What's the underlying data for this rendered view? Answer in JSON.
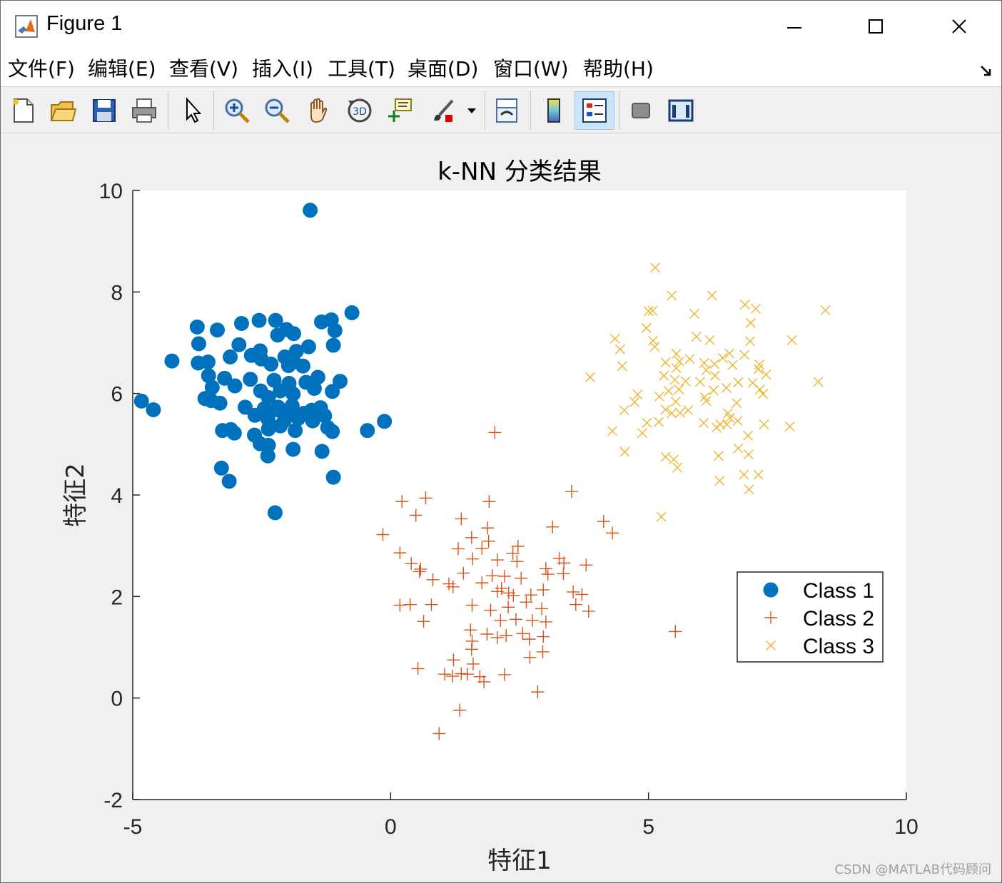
{
  "window": {
    "title": "Figure 1"
  },
  "menu": {
    "items": [
      "文件(F)",
      "编辑(E)",
      "查看(V)",
      "插入(I)",
      "工具(T)",
      "桌面(D)",
      "窗口(W)",
      "帮助(H)"
    ]
  },
  "toolbar": {
    "buttons": [
      {
        "name": "new-figure-icon"
      },
      {
        "name": "open-file-icon"
      },
      {
        "name": "save-icon"
      },
      {
        "name": "print-icon"
      },
      {
        "name": "select-arrow-icon"
      },
      {
        "name": "zoom-in-icon"
      },
      {
        "name": "zoom-out-icon"
      },
      {
        "name": "pan-hand-icon"
      },
      {
        "name": "rotate-3d-icon"
      },
      {
        "name": "data-cursor-icon"
      },
      {
        "name": "brush-icon"
      },
      {
        "name": "link-plot-icon"
      },
      {
        "name": "colorbar-icon"
      },
      {
        "name": "legend-icon"
      },
      {
        "name": "hide-plot-tools-icon"
      },
      {
        "name": "show-plot-tools-icon"
      }
    ]
  },
  "watermark": "CSDN @MATLAB代码顾问",
  "colors": {
    "class1": "#0072bd",
    "class2": "#d95319",
    "class3": "#edb120"
  },
  "chart_data": {
    "type": "scatter",
    "title": "k-NN 分类结果",
    "xlabel": "特征1",
    "ylabel": "特征2",
    "xlim": [
      -5,
      10
    ],
    "ylim": [
      -2,
      10
    ],
    "xticks": [
      "-5",
      "0",
      "5",
      "10"
    ],
    "yticks": [
      "-2",
      "0",
      "2",
      "4",
      "6",
      "8",
      "10"
    ],
    "legend_position": "right",
    "grid": false,
    "series": [
      {
        "name": "Class 1",
        "marker": "o",
        "color": "#0072bd",
        "points": [
          [
            -1.56,
            9.61
          ],
          [
            -0.75,
            7.59
          ],
          [
            -1.34,
            7.41
          ],
          [
            -1.15,
            7.45
          ],
          [
            -1.08,
            7.24
          ],
          [
            -2.55,
            7.44
          ],
          [
            -2.89,
            7.38
          ],
          [
            -2.23,
            7.44
          ],
          [
            -2.02,
            7.26
          ],
          [
            -1.88,
            7.18
          ],
          [
            -2.19,
            7.15
          ],
          [
            -3.75,
            7.31
          ],
          [
            -3.36,
            7.25
          ],
          [
            -3.72,
            6.98
          ],
          [
            -2.94,
            6.96
          ],
          [
            -2.53,
            6.84
          ],
          [
            -1.83,
            6.83
          ],
          [
            -1.59,
            6.92
          ],
          [
            -1.11,
            6.95
          ],
          [
            -4.24,
            6.64
          ],
          [
            -3.73,
            6.6
          ],
          [
            -3.54,
            6.62
          ],
          [
            -3.11,
            6.72
          ],
          [
            -2.7,
            6.75
          ],
          [
            -2.51,
            6.68
          ],
          [
            -2.05,
            6.72
          ],
          [
            -2.32,
            6.58
          ],
          [
            -1.98,
            6.55
          ],
          [
            -1.88,
            6.62
          ],
          [
            -1.7,
            6.54
          ],
          [
            -3.53,
            6.35
          ],
          [
            -3.22,
            6.3
          ],
          [
            -2.72,
            6.28
          ],
          [
            -2.26,
            6.26
          ],
          [
            -1.97,
            6.2
          ],
          [
            -1.64,
            6.22
          ],
          [
            -1.41,
            6.32
          ],
          [
            -0.98,
            6.24
          ],
          [
            -3.46,
            6.12
          ],
          [
            -3.02,
            6.15
          ],
          [
            -2.52,
            6.05
          ],
          [
            -2.14,
            6.05
          ],
          [
            -1.89,
            5.99
          ],
          [
            -1.48,
            6.1
          ],
          [
            -1.13,
            6.04
          ],
          [
            -4.83,
            5.85
          ],
          [
            -4.6,
            5.68
          ],
          [
            -3.6,
            5.9
          ],
          [
            -3.31,
            5.81
          ],
          [
            -2.82,
            5.73
          ],
          [
            -2.45,
            5.7
          ],
          [
            -2.2,
            5.68
          ],
          [
            -1.91,
            5.76
          ],
          [
            -1.53,
            5.67
          ],
          [
            -1.36,
            5.72
          ],
          [
            -3.48,
            5.86
          ],
          [
            -2.63,
            5.57
          ],
          [
            -2.38,
            5.5
          ],
          [
            -2.06,
            5.47
          ],
          [
            -1.79,
            5.51
          ],
          [
            -1.51,
            5.46
          ],
          [
            -1.28,
            5.56
          ],
          [
            -3.26,
            5.27
          ],
          [
            -3.1,
            5.29
          ],
          [
            -3.03,
            5.22
          ],
          [
            -2.64,
            5.18
          ],
          [
            -2.37,
            5.3
          ],
          [
            -2.14,
            5.36
          ],
          [
            -1.85,
            5.27
          ],
          [
            -1.22,
            5.33
          ],
          [
            -1.13,
            5.25
          ],
          [
            -0.45,
            5.27
          ],
          [
            -0.12,
            5.45
          ],
          [
            -2.53,
            5.01
          ],
          [
            -2.37,
            4.98
          ],
          [
            -1.89,
            4.9
          ],
          [
            -1.33,
            4.86
          ],
          [
            -2.38,
            4.77
          ],
          [
            -3.28,
            4.53
          ],
          [
            -3.13,
            4.27
          ],
          [
            -1.11,
            4.35
          ],
          [
            -2.24,
            3.65
          ],
          [
            -2.18,
            5.73
          ],
          [
            -2.37,
            5.92
          ],
          [
            -1.68,
            5.61
          ],
          [
            -2.02,
            5.61
          ]
        ]
      },
      {
        "name": "Class 2",
        "marker": "+",
        "color": "#d95319",
        "points": [
          [
            2.02,
            5.23
          ],
          [
            3.51,
            4.07
          ],
          [
            0.68,
            3.94
          ],
          [
            0.22,
            3.87
          ],
          [
            1.91,
            3.87
          ],
          [
            0.49,
            3.6
          ],
          [
            1.37,
            3.53
          ],
          [
            1.88,
            3.35
          ],
          [
            3.14,
            3.37
          ],
          [
            4.13,
            3.48
          ],
          [
            4.3,
            3.25
          ],
          [
            -0.15,
            3.22
          ],
          [
            1.57,
            3.16
          ],
          [
            1.9,
            3.09
          ],
          [
            1.31,
            2.94
          ],
          [
            1.77,
            2.95
          ],
          [
            2.47,
            2.99
          ],
          [
            2.37,
            2.85
          ],
          [
            0.18,
            2.86
          ],
          [
            0.4,
            2.65
          ],
          [
            0.56,
            2.49
          ],
          [
            2.07,
            2.72
          ],
          [
            1.59,
            2.74
          ],
          [
            2.45,
            2.69
          ],
          [
            3.27,
            2.75
          ],
          [
            3.36,
            2.66
          ],
          [
            3.79,
            2.62
          ],
          [
            3.01,
            2.55
          ],
          [
            0.58,
            2.54
          ],
          [
            0.82,
            2.33
          ],
          [
            1.41,
            2.46
          ],
          [
            1.97,
            2.41
          ],
          [
            2.21,
            2.4
          ],
          [
            2.53,
            2.36
          ],
          [
            3.05,
            2.44
          ],
          [
            3.35,
            2.45
          ],
          [
            1.13,
            2.25
          ],
          [
            1.21,
            2.19
          ],
          [
            1.77,
            2.27
          ],
          [
            2.15,
            2.16
          ],
          [
            2.29,
            2.07
          ],
          [
            2.07,
            2.1
          ],
          [
            2.38,
            2.02
          ],
          [
            2.72,
            2.03
          ],
          [
            2.96,
            2.13
          ],
          [
            3.54,
            2.09
          ],
          [
            3.71,
            2.04
          ],
          [
            0.18,
            1.83
          ],
          [
            0.38,
            1.84
          ],
          [
            0.79,
            1.84
          ],
          [
            1.58,
            1.83
          ],
          [
            1.94,
            1.73
          ],
          [
            2.28,
            1.79
          ],
          [
            2.63,
            1.89
          ],
          [
            2.93,
            1.76
          ],
          [
            3.59,
            1.84
          ],
          [
            3.84,
            1.71
          ],
          [
            0.64,
            1.51
          ],
          [
            2.13,
            1.53
          ],
          [
            2.43,
            1.55
          ],
          [
            2.75,
            1.53
          ],
          [
            3.01,
            1.5
          ],
          [
            1.55,
            1.34
          ],
          [
            1.87,
            1.26
          ],
          [
            1.58,
            1.12
          ],
          [
            2.07,
            1.19
          ],
          [
            2.24,
            1.23
          ],
          [
            2.56,
            1.27
          ],
          [
            2.69,
            1.16
          ],
          [
            2.96,
            1.21
          ],
          [
            5.52,
            1.31
          ],
          [
            1.57,
            0.96
          ],
          [
            2.95,
            0.91
          ],
          [
            2.7,
            0.8
          ],
          [
            1.22,
            0.75
          ],
          [
            1.6,
            0.67
          ],
          [
            0.53,
            0.58
          ],
          [
            1.05,
            0.47
          ],
          [
            1.37,
            0.48
          ],
          [
            1.2,
            0.43
          ],
          [
            1.49,
            0.47
          ],
          [
            1.73,
            0.42
          ],
          [
            2.21,
            0.46
          ],
          [
            1.81,
            0.32
          ],
          [
            2.85,
            0.12
          ],
          [
            1.34,
            -0.24
          ],
          [
            0.94,
            -0.7
          ]
        ]
      },
      {
        "name": "Class 3",
        "marker": "x",
        "color": "#edb120",
        "points": [
          [
            5.13,
            8.48
          ],
          [
            5.45,
            7.93
          ],
          [
            6.23,
            7.93
          ],
          [
            5.0,
            7.62
          ],
          [
            5.08,
            7.63
          ],
          [
            5.89,
            7.57
          ],
          [
            6.87,
            7.75
          ],
          [
            7.08,
            7.67
          ],
          [
            8.43,
            7.64
          ],
          [
            6.98,
            7.39
          ],
          [
            4.96,
            7.29
          ],
          [
            5.93,
            7.12
          ],
          [
            4.35,
            7.08
          ],
          [
            5.09,
            7.04
          ],
          [
            6.19,
            7.05
          ],
          [
            6.97,
            7.03
          ],
          [
            7.78,
            7.05
          ],
          [
            4.45,
            6.87
          ],
          [
            5.12,
            6.92
          ],
          [
            5.54,
            6.78
          ],
          [
            5.8,
            6.68
          ],
          [
            6.44,
            6.7
          ],
          [
            6.57,
            6.79
          ],
          [
            6.86,
            6.76
          ],
          [
            5.33,
            6.61
          ],
          [
            5.6,
            6.63
          ],
          [
            6.08,
            6.6
          ],
          [
            6.28,
            6.58
          ],
          [
            6.63,
            6.56
          ],
          [
            7.15,
            6.57
          ],
          [
            4.49,
            6.54
          ],
          [
            5.54,
            6.5
          ],
          [
            6.12,
            6.46
          ],
          [
            7.13,
            6.48
          ],
          [
            5.3,
            6.35
          ],
          [
            6.29,
            6.35
          ],
          [
            7.28,
            6.37
          ],
          [
            3.87,
            6.32
          ],
          [
            5.51,
            6.27
          ],
          [
            5.72,
            6.24
          ],
          [
            6.0,
            6.23
          ],
          [
            6.74,
            6.22
          ],
          [
            7.02,
            6.21
          ],
          [
            8.29,
            6.23
          ],
          [
            5.39,
            6.05
          ],
          [
            5.59,
            6.08
          ],
          [
            6.26,
            6.06
          ],
          [
            6.51,
            6.11
          ],
          [
            7.16,
            6.08
          ],
          [
            4.79,
            5.98
          ],
          [
            5.21,
            5.94
          ],
          [
            6.09,
            5.93
          ],
          [
            7.22,
            5.99
          ],
          [
            4.73,
            5.83
          ],
          [
            5.53,
            5.84
          ],
          [
            6.12,
            5.85
          ],
          [
            6.71,
            5.81
          ],
          [
            4.53,
            5.67
          ],
          [
            5.33,
            5.68
          ],
          [
            5.45,
            5.61
          ],
          [
            5.61,
            5.62
          ],
          [
            5.77,
            5.67
          ],
          [
            6.54,
            5.61
          ],
          [
            6.58,
            5.52
          ],
          [
            4.97,
            5.42
          ],
          [
            5.2,
            5.44
          ],
          [
            6.07,
            5.42
          ],
          [
            6.39,
            5.39
          ],
          [
            6.73,
            5.46
          ],
          [
            7.24,
            5.39
          ],
          [
            7.74,
            5.35
          ],
          [
            4.3,
            5.26
          ],
          [
            4.88,
            5.22
          ],
          [
            6.32,
            5.33
          ],
          [
            6.93,
            5.17
          ],
          [
            6.52,
            5.39
          ],
          [
            4.54,
            4.85
          ],
          [
            5.33,
            4.75
          ],
          [
            5.49,
            4.7
          ],
          [
            6.74,
            4.92
          ],
          [
            6.36,
            4.77
          ],
          [
            6.94,
            4.8
          ],
          [
            5.56,
            4.54
          ],
          [
            6.38,
            4.28
          ],
          [
            6.85,
            4.4
          ],
          [
            7.13,
            4.4
          ],
          [
            6.95,
            4.11
          ],
          [
            5.25,
            3.57
          ]
        ]
      }
    ]
  }
}
